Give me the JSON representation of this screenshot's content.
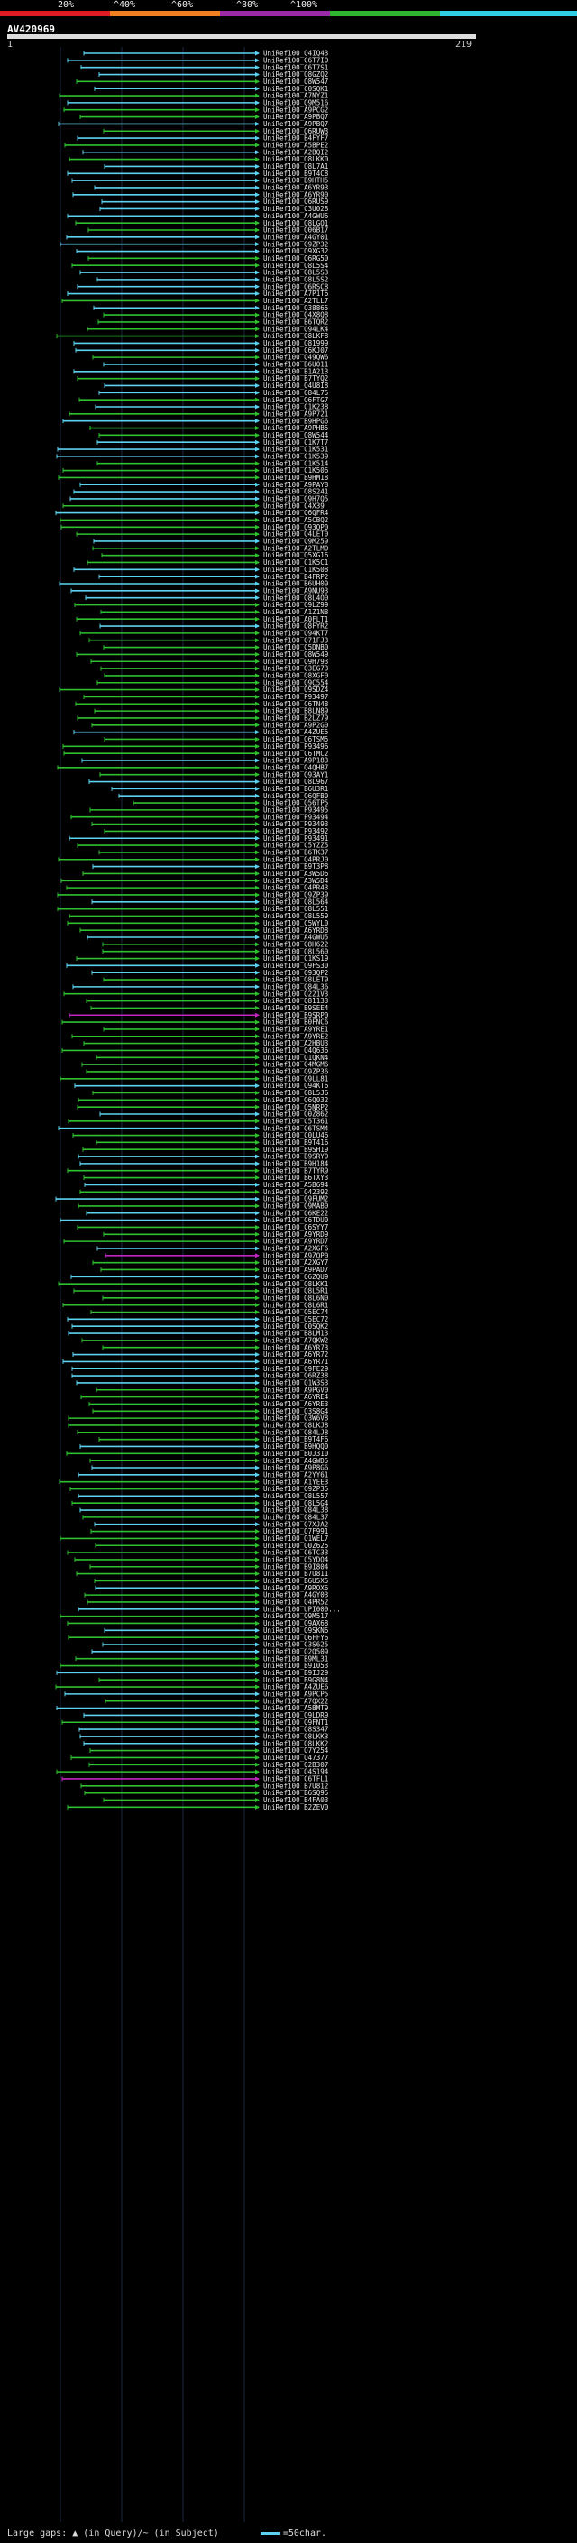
{
  "legend": {
    "labels": [
      "20%",
      "^40%",
      "^60%",
      "^80%",
      "^100%"
    ],
    "colors": [
      "#e01b24",
      "#f08020",
      "#9b2aa8",
      "#2fb52f",
      "#2fcfe8"
    ]
  },
  "query": {
    "id": "AV420969",
    "start": "1",
    "end": "219"
  },
  "colors": {
    "cyan": "#5bd3f0",
    "green": "#2ec02e",
    "magenta": "#c026c0",
    "grid": "#1e2a40"
  },
  "hits": [
    "UniRef100_Q4IQ43",
    "UniRef100_C6T7I0",
    "UniRef100_C6T7S1",
    "UniRef100_Q8GZQ2",
    "UniRef100_Q8W547",
    "UniRef100_C0SQK1",
    "UniRef100_A7NYZ1",
    "UniRef100_Q9M516",
    "UniRef100_A9PCG2",
    "UniRef100_A9PBQ7",
    "UniRef100_A9PBQ7",
    "UniRef100_Q6RUW3",
    "UniRef100_B4FYF7",
    "UniRef100_A5BPE2",
    "UniRef100_A2BQI2",
    "UniRef100_Q8LKK0",
    "UniRef100_Q8L7A1",
    "UniRef100_B9T4C8",
    "UniRef100_B9HTH5",
    "UniRef100_A6YR93",
    "UniRef100_A6YR90",
    "UniRef100_Q6RUS9",
    "UniRef100_C3U028",
    "UniRef100_A4GWU6",
    "UniRef100_Q8LGQ1",
    "UniRef100_Q06B17",
    "UniRef100_A4GY01",
    "UniRef100_Q9ZP32",
    "UniRef100_Q9XG32",
    "UniRef100_Q6RG50",
    "UniRef100_Q8L5S4",
    "UniRef100_Q8L5S3",
    "UniRef100_Q8L5S2",
    "UniRef100_Q6RSC8",
    "UniRef100_A7P1T6",
    "UniRef100_A2TLL7",
    "UniRef100_Q38865",
    "UniRef100_Q4X8Q8",
    "UniRef100_B6TQR2",
    "UniRef100_Q94LK4",
    "UniRef100_Q8LKF8",
    "UniRef100_Q81999",
    "UniRef100_C6KJ07",
    "UniRef100_Q49QW6",
    "UniRef100_B6U011",
    "UniRef100_B1A213",
    "UniRef100_B7TYQ2",
    "UniRef100_Q4U8I8",
    "UniRef100_Q84L75",
    "UniRef100_Q6FTG7",
    "UniRef100_C1K238",
    "UniRef100_A9P721",
    "UniRef100_B9HPG6",
    "UniRef100_A9PHB5",
    "UniRef100_Q8W544",
    "UniRef100_C1K7T7",
    "UniRef100_C1K531",
    "UniRef100_C1K539",
    "UniRef100_C1K514",
    "UniRef100_C1K506",
    "UniRef100_B9HM18",
    "UniRef100_A9PAY8",
    "UniRef100_Q8S241",
    "UniRef100_Q9H7Q5",
    "UniRef100_C4X39",
    "UniRef100_Q6QFR4",
    "UniRef100_A5CBQ2",
    "UniRef100_Q93QP0",
    "UniRef100_Q4LET0",
    "UniRef100_Q9M259",
    "UniRef100_A2TLM0",
    "UniRef100_Q5XG16",
    "UniRef100_C1K5C1",
    "UniRef100_C1K508",
    "UniRef100_B4FRP2",
    "UniRef100_B6UH09",
    "UniRef100_A9NU93",
    "UniRef100_Q8L4O0",
    "UniRef100_Q9LZ99",
    "UniRef100_A1Z1N8",
    "UniRef100_A0FLT1",
    "UniRef100_Q8FYR2",
    "UniRef100_Q94KT7",
    "UniRef100_Q71FJ3",
    "UniRef100_C5DNB0",
    "UniRef100_Q8W549",
    "UniRef100_Q9H793",
    "UniRef100_Q3EG73",
    "UniRef100_Q8XGF0",
    "UniRef100_Q9C554",
    "UniRef100_Q9SDZ4",
    "UniRef100_P93497",
    "UniRef100_C6TN48",
    "UniRef100_B8LN89",
    "UniRef100_B2LZ79",
    "UniRef100_A9P2G0",
    "UniRef100_A4ZUE5",
    "UniRef100_Q6TSM5",
    "UniRef100_P93496",
    "UniRef100_C6TMC2",
    "UniRef100_A9P183",
    "UniRef100_Q4QHB7",
    "UniRef100_Q93AY1",
    "UniRef100_Q8L967",
    "UniRef100_B6U3R1",
    "UniRef100_Q6QFB0",
    "UniRef100_Q56TP5",
    "UniRef100_P93495",
    "UniRef100_P93494",
    "UniRef100_P93493",
    "UniRef100_P93492",
    "UniRef100_P93491",
    "UniRef100_C5YZZ5",
    "UniRef100_B6TK37",
    "UniRef100_Q4PRJ0",
    "UniRef100_B9T3P8",
    "UniRef100_A3W5D6",
    "UniRef100_A3W5D4",
    "UniRef100_Q4PR43",
    "UniRef100_Q9ZP39",
    "UniRef100_Q8L564",
    "UniRef100_Q8L551",
    "UniRef100_Q8L559",
    "UniRef100_C5WYL0",
    "UniRef100_A6YRD8",
    "UniRef100_A4GWU5",
    "UniRef100_Q8H622",
    "UniRef100_Q8L560",
    "UniRef100_C1KS19",
    "UniRef100_Q9FS30",
    "UniRef100_Q93QP2",
    "UniRef100_Q8LET9",
    "UniRef100_Q84L36",
    "UniRef100_Q221V3",
    "UniRef100_Q81133",
    "UniRef100_B9SEE4",
    "UniRef100_B9SRP0",
    "UniRef100_B0FNC6",
    "UniRef100_A9YRE1",
    "UniRef100_A9YRE2",
    "UniRef100_A2HBU3",
    "UniRef100_Q4Q636",
    "UniRef100_Q1QKN4",
    "UniRef100_Q4MGM6",
    "UniRef100_Q9ZP36",
    "UniRef100_Q9LL81",
    "UniRef100_Q94KT6",
    "UniRef100_Q8L5J6",
    "UniRef100_Q6Q032",
    "UniRef100_Q5NRP2",
    "UniRef100_Q0Z862",
    "UniRef100_C5T361",
    "UniRef100_Q6TSM4",
    "UniRef100_C0LU46",
    "UniRef100_B9T416",
    "UniRef100_B9SH19",
    "UniRef100_B9SRY0",
    "UniRef100_B9H184",
    "UniRef100_B7TYR9",
    "UniRef100_B6TXY3",
    "UniRef100_A5B694",
    "UniRef100_Q42392",
    "UniRef100_Q9FUM2",
    "UniRef100_Q9MAB0",
    "UniRef100_Q6KE22",
    "UniRef100_C6TDU0",
    "UniRef100_C6SYY7",
    "UniRef100_A9YRD9",
    "UniRef100_A9YRD7",
    "UniRef100_A2XGF6",
    "UniRef100_A9ZQP0",
    "UniRef100_A2XGY7",
    "UniRef100_A9PAD7",
    "UniRef100_Q6ZQU9",
    "UniRef100_Q8LKK1",
    "UniRef100_Q8L5R1",
    "UniRef100_Q8L6N0",
    "UniRef100_Q8L6R1",
    "UniRef100_Q5EC74",
    "UniRef100_Q5EC72",
    "UniRef100_C0SQK2",
    "UniRef100_B8LM13",
    "UniRef100_A7QKW2",
    "UniRef100_A6YR73",
    "UniRef100_A6YR72",
    "UniRef100_A6YR71",
    "UniRef100_Q9FE29",
    "UniRef100_Q6RZ38",
    "UniRef100_Q1W3S3",
    "UniRef100_A9PGV0",
    "UniRef100_A6YRE4",
    "UniRef100_A6YRE3",
    "UniRef100_Q3S8G4",
    "UniRef100_Q3W6V8",
    "UniRef100_Q8LKJ8",
    "UniRef100_Q84LJ8",
    "UniRef100_B9T4F6",
    "UniRef100_B9HQQ0",
    "UniRef100_B0J310",
    "UniRef100_A4GWD5",
    "UniRef100_A9P8G6",
    "UniRef100_A2YY61",
    "UniRef100_A1YEE3",
    "UniRef100_Q9ZP35",
    "UniRef100_Q8L557",
    "UniRef100_Q8L5G4",
    "UniRef100_Q84L38",
    "UniRef100_Q84L37",
    "UniRef100_Q7XJA2",
    "UniRef100_Q7F991",
    "UniRef100_Q1WEL7",
    "UniRef100_Q0Z625",
    "UniRef100_C6TC33",
    "UniRef100_C5YDO4",
    "UniRef100_B9I804",
    "UniRef100_B7U811",
    "UniRef100_B6U5X5",
    "UniRef100_A9ROX6",
    "UniRef100_A4GY03",
    "UniRef100_Q4PR52",
    "UniRef100_UPI000...",
    "UniRef100_Q9M517",
    "UniRef100_Q9AX68",
    "UniRef100_Q9SKN6",
    "UniRef100_Q6FFY6",
    "UniRef100_C3S625",
    "UniRef100_Q2Q509",
    "UniRef100_B9ML31",
    "UniRef100_B9I053",
    "UniRef100_B9IJ29",
    "UniRef100_B9G8N4",
    "UniRef100_A4ZUE6",
    "UniRef100_A9PCP5",
    "UniRef100_A7QX22",
    "UniRef100_A5BMT9",
    "UniRef100_Q9LDR9",
    "UniRef100_Q9FNT1",
    "UniRef100_Q8S347",
    "UniRef100_Q8LKK3",
    "UniRef100_Q8LKK2",
    "UniRef100_Q7Y254",
    "UniRef100_Q47377",
    "UniRef100_Q2B307",
    "UniRef100_Q4S194",
    "UniRef100_C6TFL1",
    "UniRef100_B7U812",
    "UniRef100_B6SQ95",
    "UniRef100_B4FA03",
    "UniRef100_B2ZEV0"
  ],
  "footer": {
    "text": "Large gaps: ▲ (in Query)/~ (in Subject)",
    "scale": "=50char."
  }
}
